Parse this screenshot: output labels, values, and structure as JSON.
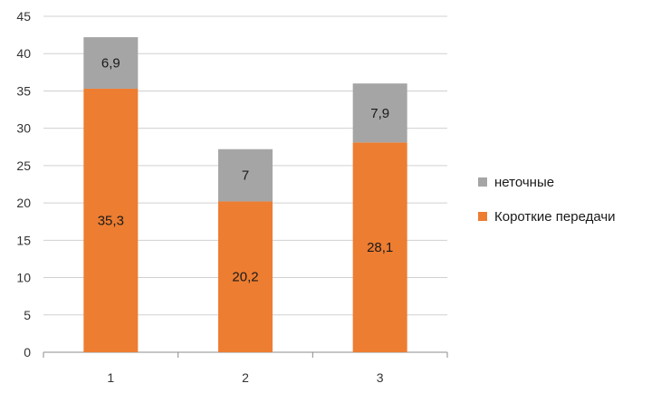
{
  "chart_data": {
    "type": "bar",
    "stacked": true,
    "categories": [
      "1",
      "2",
      "3"
    ],
    "series": [
      {
        "name": "Короткие передачи",
        "values": [
          35.3,
          20.2,
          28.1
        ],
        "labels": [
          "35,3",
          "20,2",
          "28,1"
        ],
        "color": "#ed7d31"
      },
      {
        "name": "неточные",
        "values": [
          6.9,
          7,
          7.9
        ],
        "labels": [
          "6,9",
          "7",
          "7,9"
        ],
        "color": "#a5a5a5"
      }
    ],
    "ylim": [
      0,
      45
    ],
    "yticks": [
      "0",
      "5",
      "10",
      "15",
      "20",
      "25",
      "30",
      "35",
      "40",
      "45"
    ],
    "grid": true,
    "legend_position": "right"
  }
}
